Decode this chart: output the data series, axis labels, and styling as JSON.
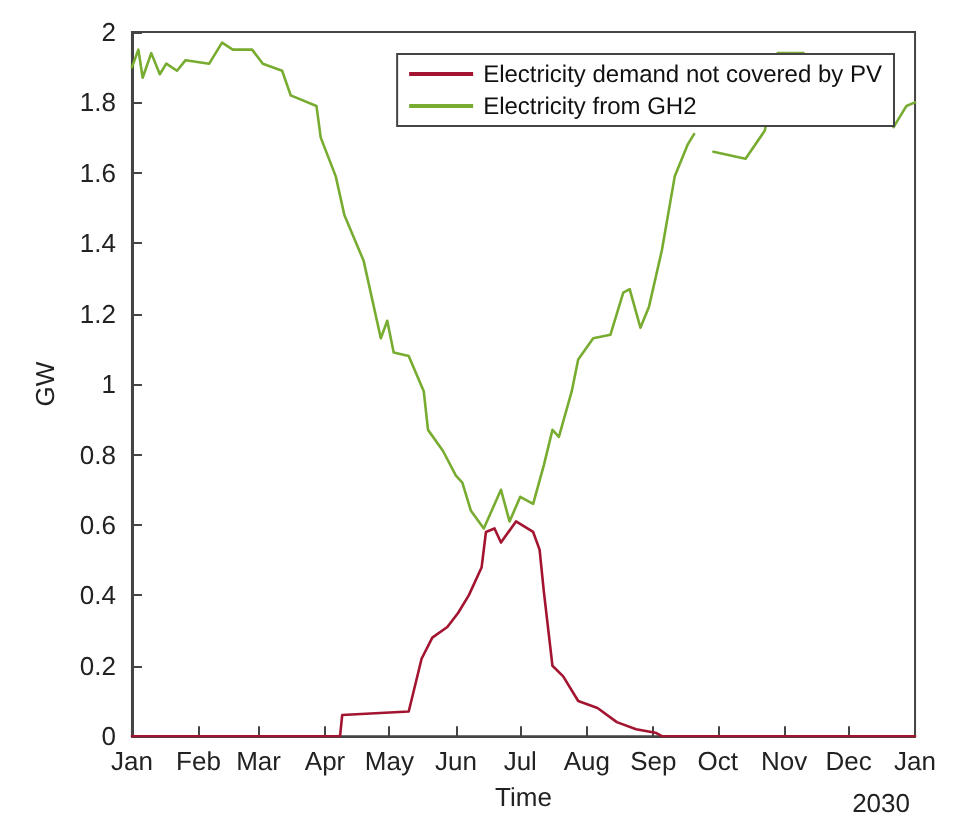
{
  "chart_data": {
    "type": "line",
    "xlabel": "Time",
    "ylabel": "GW",
    "annotations": [
      "2030"
    ],
    "xlim": [
      "2030-01-01",
      "2031-01-01"
    ],
    "xticks": [
      {
        "value": "2030-01-01",
        "label": "Jan"
      },
      {
        "value": "2030-02-01",
        "label": "Feb"
      },
      {
        "value": "2030-03-01",
        "label": "Mar"
      },
      {
        "value": "2030-04-01",
        "label": "Apr"
      },
      {
        "value": "2030-05-01",
        "label": "May"
      },
      {
        "value": "2030-06-01",
        "label": "Jun"
      },
      {
        "value": "2030-07-01",
        "label": "Jul"
      },
      {
        "value": "2030-08-01",
        "label": "Aug"
      },
      {
        "value": "2030-09-01",
        "label": "Sep"
      },
      {
        "value": "2030-10-01",
        "label": "Oct"
      },
      {
        "value": "2030-11-01",
        "label": "Nov"
      },
      {
        "value": "2030-12-01",
        "label": "Dec"
      },
      {
        "value": "2031-01-01",
        "label": "Jan"
      }
    ],
    "ylim": [
      0,
      2
    ],
    "yticks": [
      0,
      0.2,
      0.4,
      0.6,
      0.8,
      1,
      1.2,
      1.4,
      1.6,
      1.8,
      2
    ],
    "grid": false,
    "legend": "top right",
    "series": [
      {
        "name": "Electricity demand not covered by PV",
        "color": "#a2142f",
        "x": [
          "2030-01-01",
          "2030-04-08",
          "2030-04-09",
          "2030-05-10",
          "2030-05-12",
          "2030-05-16",
          "2030-05-21",
          "2030-05-28",
          "2030-06-02",
          "2030-06-07",
          "2030-06-13",
          "2030-06-15",
          "2030-06-19",
          "2030-06-22",
          "2030-06-29",
          "2030-07-07",
          "2030-07-10",
          "2030-07-12",
          "2030-07-16",
          "2030-07-21",
          "2030-07-28",
          "2030-08-06",
          "2030-08-15",
          "2030-08-24",
          "2030-09-02",
          "2030-09-05",
          "2031-01-01"
        ],
        "values": [
          0,
          0,
          0.06,
          0.07,
          0.12,
          0.22,
          0.28,
          0.31,
          0.35,
          0.4,
          0.48,
          0.58,
          0.59,
          0.55,
          0.61,
          0.58,
          0.53,
          0.41,
          0.2,
          0.17,
          0.1,
          0.08,
          0.04,
          0.02,
          0.01,
          0,
          0
        ]
      },
      {
        "name": "Electricity from GH2",
        "color": "#77ac30",
        "x": [
          "2030-01-01",
          "2030-01-04",
          "2030-01-06",
          "2030-01-10",
          "2030-01-14",
          "2030-01-17",
          "2030-01-22",
          "2030-01-26",
          "2030-02-06",
          "2030-02-12",
          "2030-02-17",
          "2030-02-26",
          "2030-03-03",
          "2030-03-12",
          "2030-03-16",
          "2030-03-28",
          "2030-03-30",
          "2030-04-06",
          "2030-04-10",
          "2030-04-19",
          "2030-04-27",
          "2030-04-30",
          "2030-05-03",
          "2030-05-10",
          "2030-05-17",
          "2030-05-19",
          "2030-05-26",
          "2030-06-01",
          "2030-06-04",
          "2030-06-08",
          "2030-06-14",
          "2030-06-22",
          "2030-06-26",
          "2030-07-01",
          "2030-07-07",
          "2030-07-12",
          "2030-07-16",
          "2030-07-19",
          "2030-07-25",
          "2030-07-28",
          "2030-08-04",
          "2030-08-12",
          "2030-08-18",
          "2030-08-21",
          "2030-08-26",
          "2030-08-30",
          "2030-09-05",
          "2030-09-11",
          "2030-09-17",
          "2030-09-20",
          "2030-09-24",
          "2030-09-29",
          "2030-10-14",
          "2030-10-23",
          "2030-10-29",
          "2030-11-10",
          "2030-11-16",
          "2030-11-20",
          "2030-12-22",
          "2030-12-28",
          "2031-01-01"
        ],
        "values": [
          1.9,
          1.95,
          1.87,
          1.94,
          1.88,
          1.91,
          1.89,
          1.92,
          1.91,
          1.97,
          1.95,
          1.95,
          1.91,
          1.89,
          1.82,
          1.79,
          1.7,
          1.59,
          1.48,
          1.35,
          1.13,
          1.18,
          1.09,
          1.08,
          0.98,
          0.87,
          0.81,
          0.74,
          0.72,
          0.64,
          0.59,
          0.7,
          0.61,
          0.68,
          0.66,
          0.77,
          0.87,
          0.85,
          0.98,
          1.07,
          1.13,
          1.14,
          1.26,
          1.27,
          1.16,
          1.22,
          1.38,
          1.59,
          1.68,
          1.71,
          null,
          1.66,
          1.64,
          1.72,
          1.94,
          1.94,
          null,
          null,
          1.73,
          1.79,
          1.8
        ]
      }
    ]
  }
}
